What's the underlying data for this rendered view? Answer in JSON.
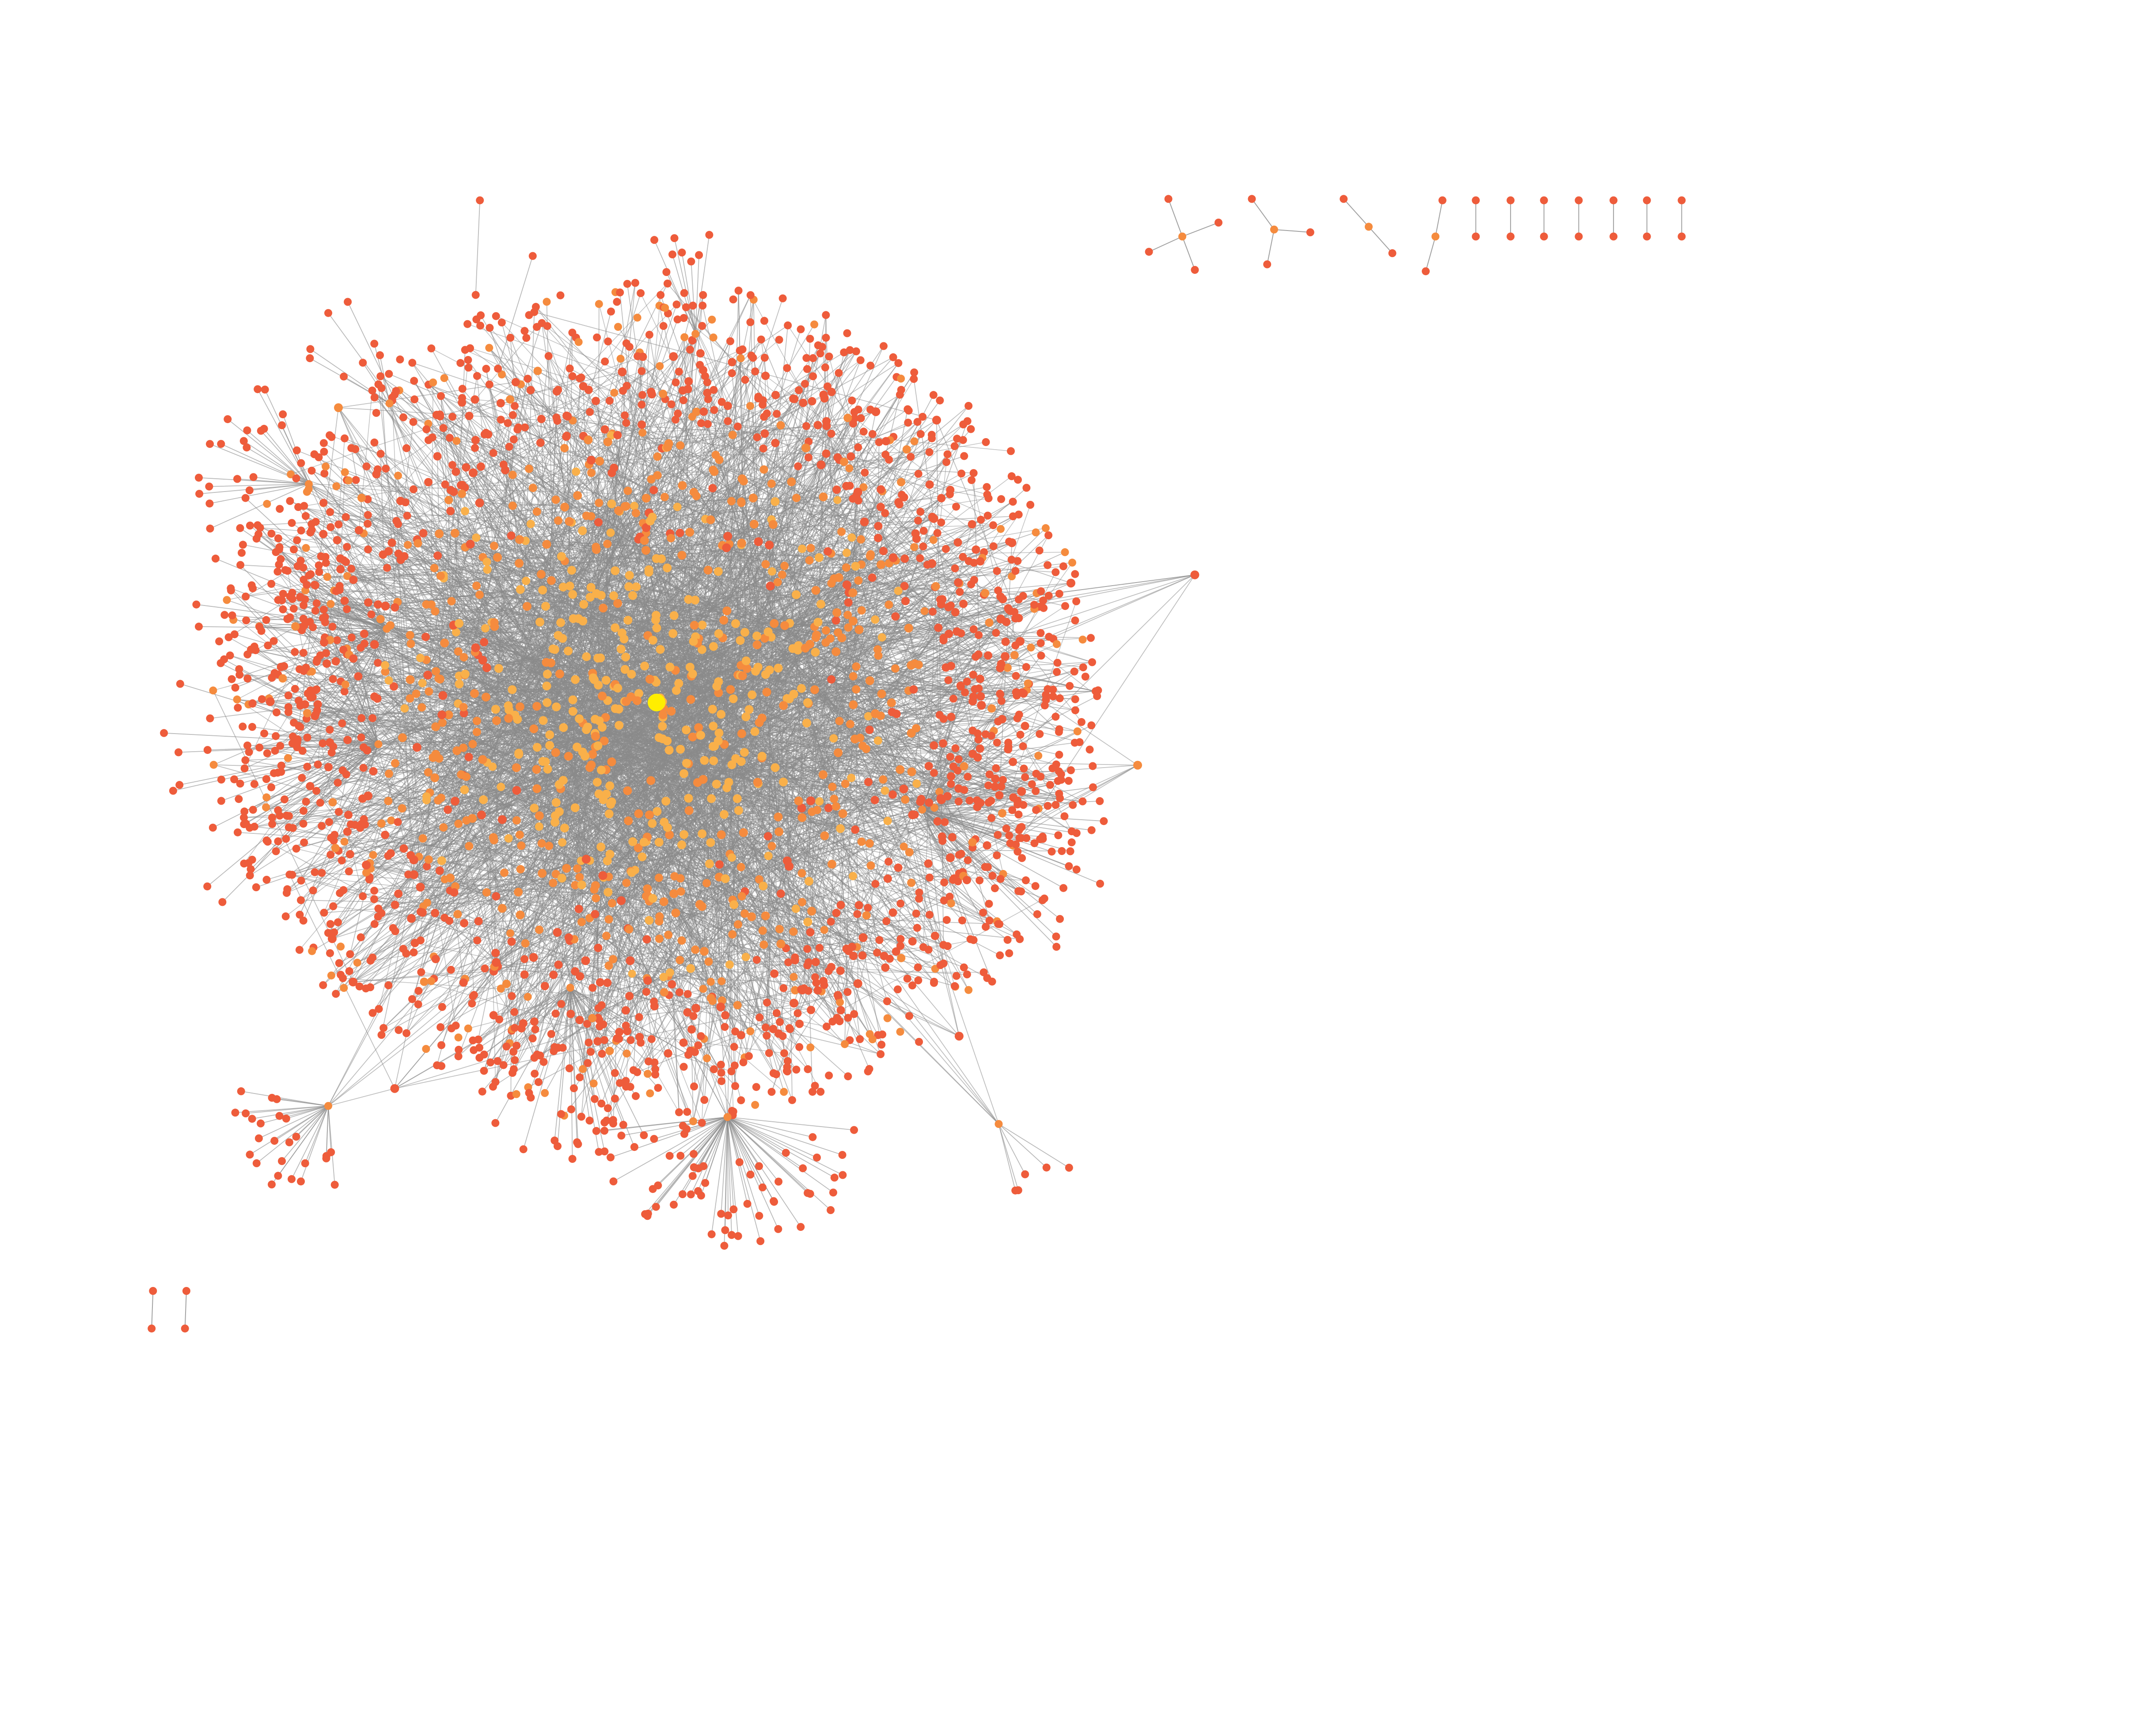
{
  "diagram": {
    "kind": "network graph",
    "layout": "force-directed",
    "labels_shown": false,
    "colors": {
      "background": "#ffffff",
      "edge": "#8a8a8a",
      "node_low_degree": "#ee5c3b",
      "node_mid_degree": "#f58b3e",
      "node_high_degree": "#f9b04a",
      "central_hub": "#ffee00",
      "hub_outline": "#f2c200"
    },
    "components": [
      {
        "id": "main-cluster",
        "shape": "dense hairball with peripheral star sub-clusters"
      },
      {
        "id": "star-a",
        "shape": "star",
        "nodes": 5
      },
      {
        "id": "star-b",
        "shape": "star",
        "nodes": 4
      },
      {
        "id": "path-c",
        "shape": "path",
        "nodes": 3
      },
      {
        "id": "path-d",
        "shape": "path",
        "nodes": 3
      },
      {
        "id": "pair-1",
        "shape": "pair",
        "nodes": 2
      },
      {
        "id": "pair-2",
        "shape": "pair",
        "nodes": 2
      },
      {
        "id": "pair-3",
        "shape": "pair",
        "nodes": 2
      },
      {
        "id": "pair-4",
        "shape": "pair",
        "nodes": 2
      },
      {
        "id": "pair-5",
        "shape": "pair",
        "nodes": 2
      },
      {
        "id": "pair-6",
        "shape": "pair",
        "nodes": 2
      },
      {
        "id": "pair-7",
        "shape": "pair",
        "nodes": 2
      },
      {
        "id": "pair-8",
        "shape": "pair",
        "nodes": 2
      },
      {
        "id": "pair-9",
        "shape": "pair",
        "nodes": 2
      }
    ]
  }
}
